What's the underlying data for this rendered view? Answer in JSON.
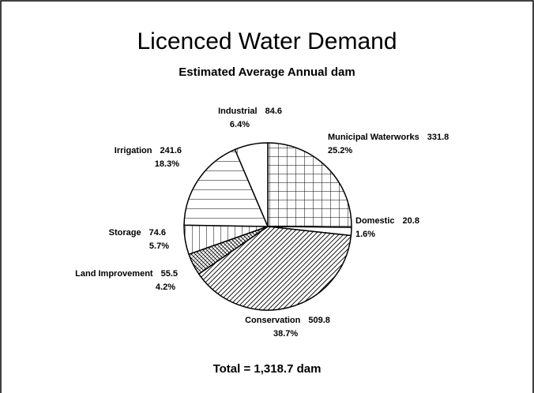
{
  "chart_data": {
    "type": "pie",
    "title": "Licenced Water Demand",
    "subtitle": "Estimated Average Annual dam",
    "categories": [
      "Municipal Waterworks",
      "Domestic",
      "Conservation",
      "Land Improvement",
      "Storage",
      "Irrigation",
      "Industrial"
    ],
    "values": [
      331.8,
      20.8,
      509.8,
      55.5,
      74.6,
      241.6,
      84.6
    ],
    "percent_labels": [
      "25.2%",
      "1.6%",
      "38.7%",
      "4.2%",
      "5.7%",
      "18.3%",
      "6.4%"
    ],
    "fills": [
      "grid",
      "white",
      "diagonal",
      "dense-backslash",
      "vertical",
      "horizontal",
      "sparse-vertical"
    ],
    "start_angle": 0,
    "direction": "clockwise",
    "total_label": "Total = 1,318.7 dam"
  }
}
